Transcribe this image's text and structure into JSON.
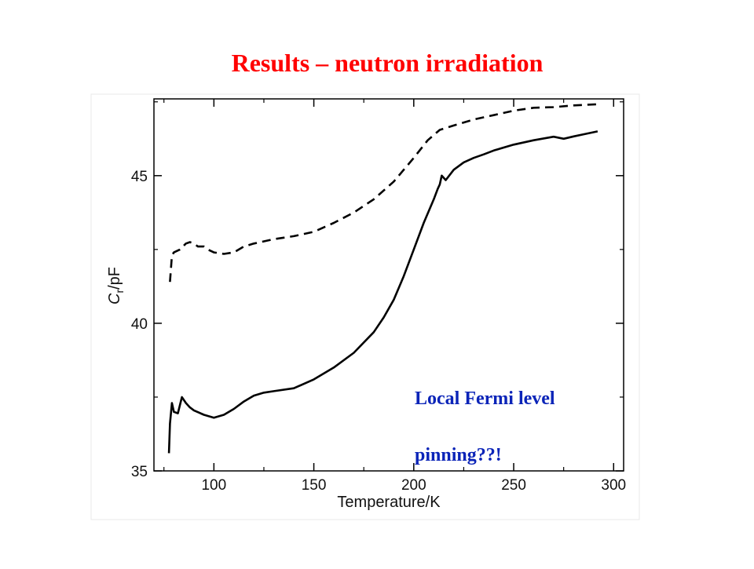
{
  "slide": {
    "title": "Results – neutron irradiation",
    "annotation_lines": [
      "Local Fermi level",
      "pinning??!"
    ]
  },
  "colors": {
    "title": "#ff0000",
    "annotation": "#0b24b8",
    "lines": "#000000"
  },
  "chart_data": {
    "type": "line",
    "title": "",
    "xlabel": "Temperature/K",
    "ylabel": "C_r/pF",
    "ylabel_main": "C",
    "ylabel_sub": "r",
    "ylabel_unit": "/pF",
    "xlim": [
      70,
      305
    ],
    "ylim": [
      35,
      47.6
    ],
    "xticks": [
      100,
      150,
      200,
      250,
      300
    ],
    "yticks": [
      35,
      40,
      45
    ],
    "grid": false,
    "legend": "none",
    "series": [
      {
        "style": "dashed",
        "x": [
          78,
          79,
          80,
          83,
          86,
          88,
          90,
          92,
          95,
          97,
          100,
          105,
          110,
          115,
          120,
          130,
          140,
          150,
          160,
          170,
          180,
          190,
          200,
          207,
          213,
          220,
          230,
          240,
          250,
          260,
          270,
          280,
          292
        ],
        "y": [
          41.4,
          42.3,
          42.4,
          42.5,
          42.7,
          42.75,
          42.7,
          42.6,
          42.6,
          42.5,
          42.4,
          42.35,
          42.4,
          42.6,
          42.7,
          42.85,
          42.95,
          43.1,
          43.4,
          43.75,
          44.2,
          44.8,
          45.6,
          46.2,
          46.55,
          46.7,
          46.9,
          47.05,
          47.2,
          47.3,
          47.32,
          47.38,
          47.42
        ]
      },
      {
        "style": "solid",
        "x": [
          77.5,
          78,
          79,
          80,
          82,
          84,
          86,
          88,
          90,
          95,
          100,
          105,
          110,
          115,
          120,
          125,
          130,
          140,
          150,
          160,
          170,
          180,
          185,
          190,
          195,
          200,
          205,
          210,
          212,
          213,
          214,
          216,
          220,
          225,
          230,
          235,
          240,
          250,
          260,
          270,
          275,
          280,
          285,
          292
        ],
        "y": [
          35.6,
          36.6,
          37.3,
          37.0,
          36.95,
          37.5,
          37.3,
          37.15,
          37.05,
          36.9,
          36.8,
          36.9,
          37.1,
          37.35,
          37.55,
          37.65,
          37.7,
          37.8,
          38.1,
          38.5,
          39.0,
          39.7,
          40.2,
          40.8,
          41.6,
          42.5,
          43.4,
          44.2,
          44.55,
          44.7,
          45.0,
          44.85,
          45.2,
          45.45,
          45.6,
          45.72,
          45.85,
          46.05,
          46.2,
          46.32,
          46.25,
          46.33,
          46.4,
          46.5
        ]
      }
    ]
  }
}
